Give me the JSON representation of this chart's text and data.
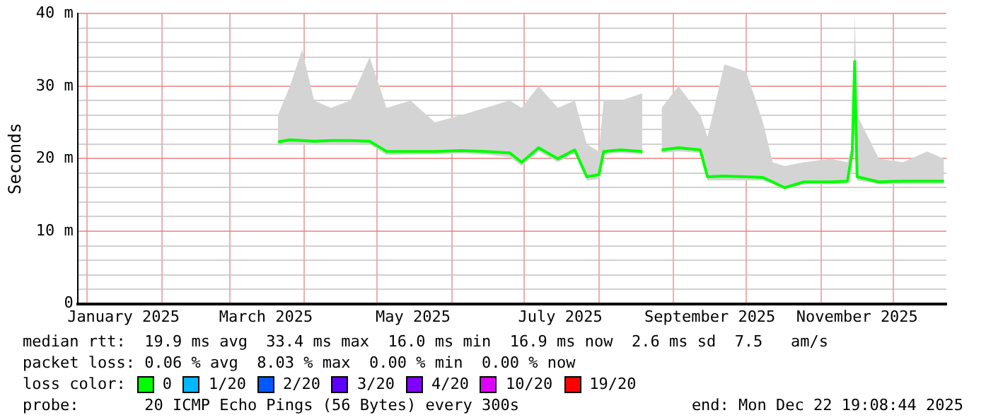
{
  "chart_data": {
    "type": "line",
    "ylabel": "Seconds",
    "legend_title": "loss color:",
    "legend": "bottom",
    "grid": true,
    "marker": "none",
    "line_style": "solid",
    "xlim": [
      "2024-12-28",
      "2025-12-23"
    ],
    "xticks": [
      {
        "value": "2025-01-01",
        "label": null
      },
      {
        "value": "2025-01-16",
        "label": "January 2025"
      },
      {
        "value": "2025-02-01",
        "label": null
      },
      {
        "value": "2025-03-01",
        "label": null
      },
      {
        "value": "2025-03-16",
        "label": "March 2025"
      },
      {
        "value": "2025-04-01",
        "label": null
      },
      {
        "value": "2025-05-01",
        "label": null
      },
      {
        "value": "2025-05-16",
        "label": "May 2025"
      },
      {
        "value": "2025-06-01",
        "label": null
      },
      {
        "value": "2025-07-01",
        "label": null
      },
      {
        "value": "2025-07-16",
        "label": "July 2025"
      },
      {
        "value": "2025-08-01",
        "label": null
      },
      {
        "value": "2025-09-01",
        "label": null
      },
      {
        "value": "2025-09-16",
        "label": "September 2025"
      },
      {
        "value": "2025-10-01",
        "label": null
      },
      {
        "value": "2025-11-01",
        "label": null
      },
      {
        "value": "2025-11-16",
        "label": "November 2025"
      },
      {
        "value": "2025-12-01",
        "label": null
      }
    ],
    "ylim": [
      0,
      40
    ],
    "yticks": [
      0,
      {
        "value": 2,
        "label": null
      },
      {
        "value": 4,
        "label": null
      },
      {
        "value": 6,
        "label": null
      },
      {
        "value": 8,
        "label": null
      },
      {
        "value": 10,
        "label": "10 m"
      },
      {
        "value": 12,
        "label": null
      },
      {
        "value": 14,
        "label": null
      },
      {
        "value": 16,
        "label": null
      },
      {
        "value": 18,
        "label": null
      },
      {
        "value": 20,
        "label": "20 m"
      },
      {
        "value": 22,
        "label": null
      },
      {
        "value": 24,
        "label": null
      },
      {
        "value": 26,
        "label": null
      },
      {
        "value": 28,
        "label": null
      },
      {
        "value": 30,
        "label": "30 m"
      },
      {
        "value": 32,
        "label": null
      },
      {
        "value": 34,
        "label": null
      },
      {
        "value": 36,
        "label": null
      },
      {
        "value": 38,
        "label": null
      },
      {
        "value": 40,
        "label": "40 m"
      }
    ],
    "x": [
      "2025-03-21",
      "2025-03-26",
      "2025-03-31",
      "2025-04-05",
      "2025-04-12",
      "2025-04-20",
      "2025-04-28",
      "2025-05-05",
      "2025-05-15",
      "2025-05-25",
      "2025-06-05",
      "2025-06-15",
      "2025-06-25",
      "2025-06-30",
      "2025-07-07",
      "2025-07-15",
      "2025-07-22",
      "2025-07-27",
      "2025-08-01",
      "2025-08-03",
      "2025-08-10",
      "2025-08-19",
      "2025-08-21",
      "2025-08-25",
      "2025-08-27",
      "2025-09-03",
      "2025-09-12",
      "2025-09-15",
      "2025-09-22",
      "2025-10-01",
      "2025-10-08",
      "2025-10-12",
      "2025-10-17",
      "2025-10-25",
      "2025-11-05",
      "2025-11-12",
      "2025-11-14",
      "2025-11-15",
      "2025-11-16",
      "2025-11-25",
      "2025-12-05",
      "2025-12-15",
      "2025-12-22"
    ],
    "series": [
      {
        "name": "0",
        "color": "#00ff00",
        "values": [
          22.3,
          22.6,
          22.5,
          22.4,
          22.5,
          22.5,
          22.4,
          21.0,
          21.0,
          21.0,
          21.1,
          21.0,
          20.8,
          19.5,
          21.5,
          20.0,
          21.2,
          17.5,
          17.8,
          21.0,
          21.2,
          21.0,
          null,
          null,
          21.2,
          21.5,
          21.2,
          17.5,
          17.6,
          17.5,
          17.4,
          16.8,
          16.0,
          16.8,
          16.8,
          16.9,
          21.0,
          33.4,
          17.5,
          16.8,
          16.9,
          16.9,
          16.9
        ],
        "lower": [
          21.8,
          22.0,
          22.0,
          21.9,
          22.0,
          22.0,
          22.0,
          20.5,
          20.6,
          20.6,
          20.7,
          20.6,
          20.2,
          19.0,
          21.0,
          19.5,
          20.8,
          17.0,
          17.2,
          20.6,
          20.8,
          20.6,
          null,
          null,
          20.8,
          21.0,
          20.8,
          17.0,
          17.0,
          17.0,
          17.0,
          16.5,
          15.8,
          16.5,
          16.5,
          16.5,
          20.0,
          32.0,
          17.0,
          16.5,
          16.5,
          16.5,
          16.5
        ],
        "upper": [
          26,
          30,
          35,
          28,
          27,
          28,
          34,
          27,
          28,
          25,
          26,
          27,
          28,
          27,
          30,
          27,
          28,
          22,
          21,
          28,
          28,
          29,
          null,
          null,
          27,
          30,
          26,
          23,
          33,
          32,
          25,
          19.5,
          19,
          19.5,
          20,
          19.5,
          22,
          40,
          26,
          20,
          19.5,
          21,
          20
        ]
      },
      {
        "name": "1/20",
        "color": "#00b8ff",
        "values": [
          null,
          null,
          null,
          null,
          null,
          null,
          null,
          null,
          null,
          null,
          null,
          null,
          null,
          null,
          null,
          null,
          null,
          null,
          null,
          null,
          null,
          null,
          null,
          null,
          null,
          null,
          null,
          null,
          null,
          null,
          null,
          null,
          null,
          null,
          null,
          null,
          null,
          null,
          null,
          null,
          null,
          null,
          null
        ]
      },
      {
        "name": "2/20",
        "color": "#0059ff",
        "values": [
          null,
          null,
          null,
          null,
          null,
          null,
          null,
          null,
          null,
          null,
          null,
          null,
          null,
          null,
          null,
          null,
          null,
          null,
          null,
          null,
          null,
          null,
          null,
          null,
          null,
          null,
          null,
          null,
          null,
          null,
          null,
          null,
          null,
          null,
          null,
          null,
          null,
          null,
          null,
          null,
          null,
          null,
          null
        ]
      },
      {
        "name": "3/20",
        "color": "#5e00ff",
        "values": [
          null,
          null,
          null,
          null,
          null,
          null,
          null,
          null,
          null,
          null,
          null,
          null,
          null,
          null,
          null,
          null,
          null,
          null,
          null,
          null,
          null,
          null,
          null,
          null,
          null,
          null,
          null,
          null,
          null,
          null,
          null,
          null,
          null,
          null,
          null,
          null,
          null,
          null,
          null,
          null,
          null,
          null,
          null
        ]
      },
      {
        "name": "4/20",
        "color": "#7e00ff",
        "values": [
          null,
          null,
          null,
          null,
          null,
          null,
          null,
          null,
          null,
          null,
          null,
          null,
          null,
          null,
          null,
          null,
          null,
          null,
          null,
          null,
          null,
          null,
          null,
          null,
          null,
          null,
          null,
          null,
          null,
          null,
          null,
          null,
          null,
          null,
          null,
          null,
          null,
          null,
          null,
          null,
          null,
          null,
          null
        ]
      },
      {
        "name": "10/20",
        "color": "#dd00ff",
        "values": [
          null,
          null,
          null,
          null,
          null,
          null,
          null,
          null,
          null,
          null,
          null,
          null,
          null,
          null,
          null,
          null,
          null,
          null,
          null,
          null,
          null,
          null,
          null,
          null,
          null,
          null,
          null,
          null,
          null,
          null,
          null,
          null,
          null,
          null,
          null,
          null,
          null,
          null,
          null,
          null,
          null,
          null,
          null
        ]
      },
      {
        "name": "19/20",
        "color": "#ff0000",
        "values": [
          null,
          null,
          null,
          null,
          null,
          null,
          null,
          null,
          null,
          null,
          null,
          null,
          null,
          null,
          null,
          null,
          null,
          null,
          null,
          null,
          null,
          null,
          null,
          null,
          null,
          null,
          null,
          null,
          null,
          null,
          null,
          null,
          null,
          null,
          null,
          null,
          null,
          null,
          null,
          null,
          null,
          null,
          null
        ]
      }
    ],
    "annotations": [
      "median rtt:  19.9 ms avg  33.4 ms max  16.0 ms min  16.9 ms now  2.6 ms sd  7.5   am/s",
      "packet loss: 0.06 % avg  8.03 % max  0.00 % min  0.00 % now",
      "probe:       20 ICMP Echo Pings (56 Bytes) every 300s",
      "end: Mon Dec 22 19:08:44 2025"
    ]
  }
}
